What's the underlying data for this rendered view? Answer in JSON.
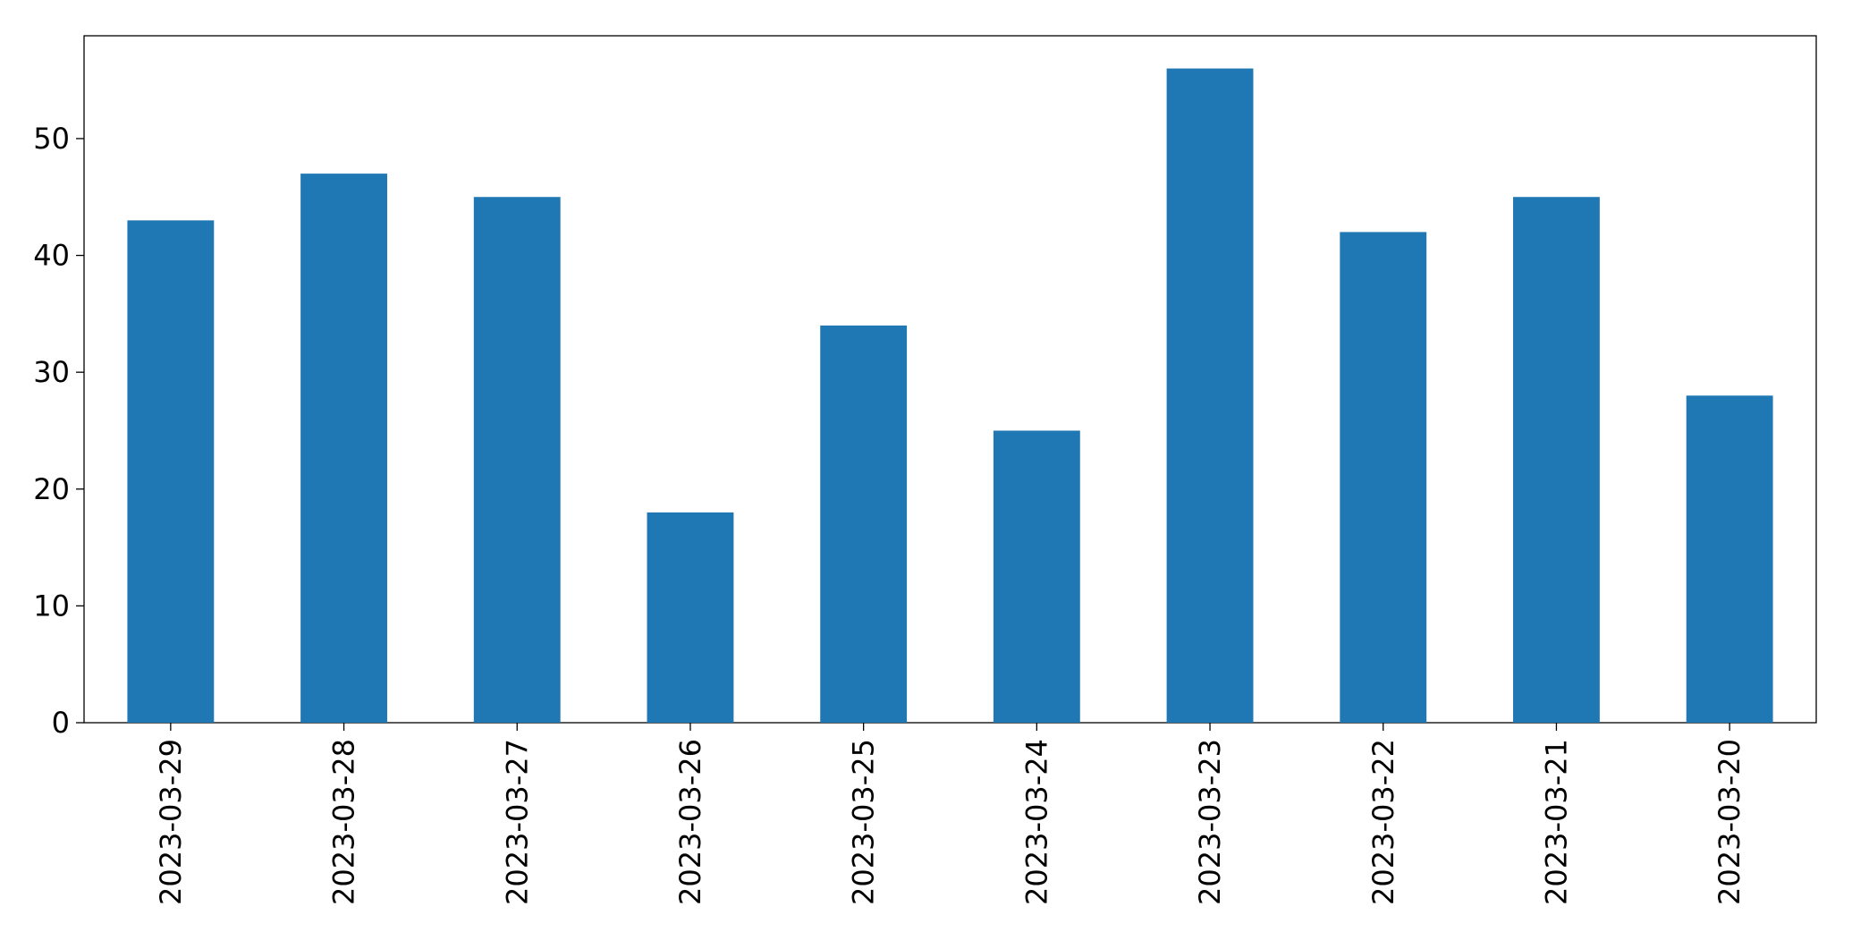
{
  "chart_data": {
    "type": "bar",
    "categories": [
      "2023-03-29",
      "2023-03-28",
      "2023-03-27",
      "2023-03-26",
      "2023-03-25",
      "2023-03-24",
      "2023-03-23",
      "2023-03-22",
      "2023-03-21",
      "2023-03-20"
    ],
    "values": [
      43,
      47,
      45,
      18,
      34,
      25,
      56,
      42,
      45,
      28
    ],
    "color": "#1f77b4",
    "ylim": [
      0,
      58.8
    ],
    "yticks": [
      0,
      10,
      20,
      30,
      40,
      50
    ],
    "grid": false
  }
}
